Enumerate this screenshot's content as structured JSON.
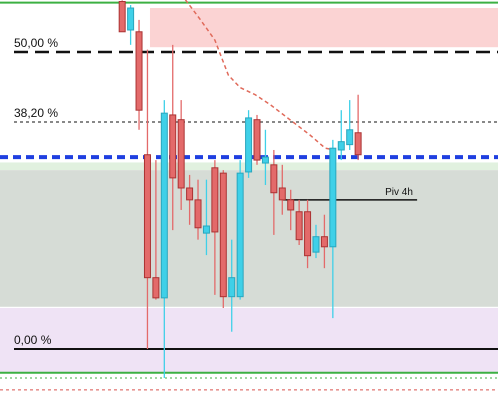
{
  "chart_data": {
    "type": "candlestick",
    "xlim": [
      -14.5,
      44.6
    ],
    "ylim": [
      -9.1,
      58.75
    ],
    "up_color": "#3fd0e8",
    "down_color": "#e36a6a",
    "candles": {
      "open": [
        58.5,
        53.7,
        53.4,
        32.7,
        12.0,
        8.6,
        39.4,
        38.6,
        27.1,
        25.1,
        19.5,
        30.5,
        29.6,
        8.8,
        8.8,
        29.8,
        38.6,
        31.3,
        31.0,
        27.1,
        25.1,
        23.1,
        23.1,
        16.3,
        18.9,
        17.2,
        33.5,
        34.4,
        36.4
      ],
      "high": [
        58.7,
        57.9,
        55.4,
        50.4,
        31.8,
        41.9,
        51.2,
        41.9,
        29.3,
        28.5,
        28.5,
        31.8,
        30.1,
        18.4,
        31.8,
        40.2,
        39.4,
        36.9,
        33.5,
        31.0,
        26.8,
        25.1,
        25.1,
        20.9,
        22.6,
        35.2,
        40.2,
        41.9,
        42.8
      ],
      "low": [
        53.4,
        51.2,
        36.9,
        0,
        8.3,
        -4.9,
        20.0,
        23.4,
        20.9,
        18.4,
        15.8,
        9.1,
        6.9,
        2.9,
        8.3,
        28.8,
        31.0,
        27.6,
        19.2,
        22.6,
        20.0,
        17.5,
        13.6,
        15.3,
        13.6,
        5.2,
        31.8,
        33.5,
        31.8
      ],
      "close": [
        53.4,
        57.4,
        40.2,
        12.0,
        8.6,
        39.7,
        28.8,
        27.1,
        25.1,
        20.4,
        20.7,
        19.7,
        8.8,
        12.0,
        29.6,
        38.9,
        31.8,
        32.3,
        26.3,
        25.1,
        23.4,
        18.4,
        15.7,
        18.9,
        17.2,
        33.8,
        34.9,
        36.9,
        32.7
      ]
    },
    "zones": [
      {
        "from": 50.8,
        "to": 57.4,
        "x_from": 3.3,
        "color": "#fbd3d3"
      },
      {
        "from": 30.1,
        "to": 31.4,
        "x_from": -14.5,
        "color": "#e1f1df"
      },
      {
        "from": 7.1,
        "to": 30.1,
        "x_from": -14.5,
        "color": "#d6dcd6"
      },
      {
        "from": -3.9,
        "to": 6.9,
        "x_from": -14.5,
        "color": "#efe3f5"
      }
    ],
    "lines": [
      {
        "value": 58.3,
        "color": "#3cb043",
        "dash": "",
        "width": 2
      },
      {
        "value": -4.0,
        "color": "#3cb043",
        "dash": "",
        "width": 2
      },
      {
        "value": -4.9,
        "color": "#3cb043",
        "dash": "2 3",
        "width": 1
      },
      {
        "value": -6.9,
        "color": "#d9534f",
        "dash": "3 3",
        "width": 1
      },
      {
        "value": 32.3,
        "color": "#1f3fe0",
        "dash": "8 5",
        "width": 4
      }
    ],
    "fib_levels": [
      {
        "value": 50,
        "label": "50,00 %",
        "dash": "14 7",
        "width": 2.5
      },
      {
        "value": 38.2,
        "label": "38,20 %",
        "dash": "3 3",
        "width": 1
      },
      {
        "value": 0,
        "label": "0,00 %",
        "dash": "",
        "width": 2
      }
    ],
    "pivot": {
      "label": "Piv 4h",
      "value": 25.1,
      "x_from": 19.1,
      "x_to": 35.0
    },
    "ma": {
      "color": "#e06a5a",
      "x": [
        7.5,
        9.3,
        11.0,
        12.6,
        14.0,
        15.8,
        17.6,
        19.9,
        22.3,
        24.1,
        25.3
      ],
      "values": [
        58.8,
        55.4,
        52.0,
        46.1,
        44.0,
        42.8,
        41.1,
        38.6,
        36.0,
        33.8,
        33.5
      ]
    }
  }
}
